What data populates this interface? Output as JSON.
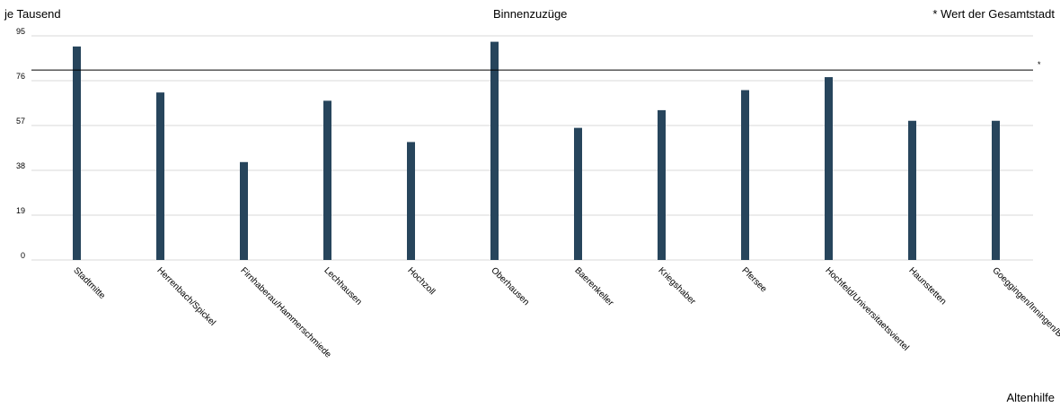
{
  "header": {
    "ylabel": "je Tausend",
    "title": "Binnenzuzüge",
    "reference_note": "* Wert der Gesamtstadt"
  },
  "footer": {
    "label": "Altenhilfe"
  },
  "chart_data": {
    "type": "bar",
    "title": "Binnenzuzüge",
    "ylabel": "je Tausend",
    "xlabel": "",
    "ylim": [
      0,
      95
    ],
    "yticks": [
      0,
      19,
      38,
      57,
      76,
      95
    ],
    "grid": true,
    "categories": [
      "Stadtmitte",
      "Herrenbach/Spickel",
      "Firnhaberau/Hammerschmiede",
      "Lechhausen",
      "Hochzoll",
      "Oberhausen",
      "Baerenkeller",
      "Kriegshaber",
      "Pfersee",
      "Hochfeld/Universitaetsviertel",
      "Haunstetten",
      "Goeggingen/Inningen/B"
    ],
    "values": [
      90.5,
      71,
      41.5,
      67.5,
      50,
      92.5,
      56,
      63.5,
      72,
      77.5,
      59,
      59
    ],
    "reference_line": {
      "value": 80.5,
      "marker": "*"
    },
    "bar_color": "#27455c"
  }
}
